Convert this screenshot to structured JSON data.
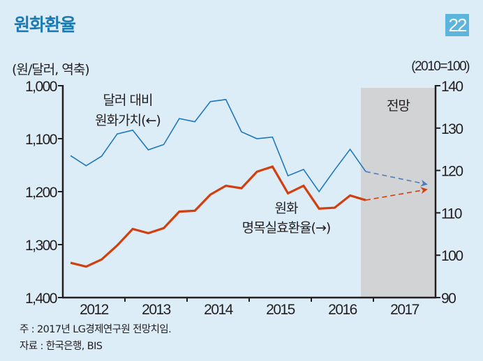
{
  "header": {
    "title": "원화환율",
    "page_badge": "22"
  },
  "colors": {
    "background": "#dcedf8",
    "title": "#1a7ab5",
    "badge": "#5cb5dc",
    "series_blue": "#1f78bd",
    "series_red": "#d23f0f",
    "forecast_shade": "#d2d3d5",
    "axis": "#231f20"
  },
  "chart_data": {
    "type": "line",
    "title": "원화환율",
    "left_axis": {
      "label": "(원/달러, 역축)",
      "inverted": true,
      "ylim": [
        1000,
        1400
      ],
      "ticks": [
        "1,000",
        "1,100",
        "1,200",
        "1,300",
        "1,400"
      ],
      "tick_values": [
        1000,
        1100,
        1200,
        1300,
        1400
      ]
    },
    "right_axis": {
      "label": "(2010=100)",
      "ylim": [
        90,
        140
      ],
      "ticks": [
        "140",
        "130",
        "120",
        "110",
        "100",
        "90"
      ],
      "tick_values": [
        140,
        130,
        120,
        110,
        100,
        90
      ]
    },
    "x_axis": {
      "categories": [
        "2012",
        "2013",
        "2014",
        "2015",
        "2016",
        "2017"
      ],
      "periods_per_year": 4,
      "x": [
        "2012Q1",
        "2012Q2",
        "2012Q3",
        "2012Q4",
        "2013Q1",
        "2013Q2",
        "2013Q3",
        "2013Q4",
        "2014Q1",
        "2014Q2",
        "2014Q3",
        "2014Q4",
        "2015Q1",
        "2015Q2",
        "2015Q3",
        "2015Q4",
        "2016Q1",
        "2016Q2",
        "2016Q3",
        "2016Q4"
      ]
    },
    "forecast_region": {
      "label": "전망",
      "start": "2016Q4",
      "end": "2017Q4"
    },
    "series": [
      {
        "name": "달러 대비 원화가치(←)",
        "label_lines": [
          "달러 대비",
          "원화가치(←)"
        ],
        "axis": "left",
        "values": [
          1132,
          1151,
          1133,
          1091,
          1084,
          1121,
          1111,
          1062,
          1068,
          1030,
          1026,
          1087,
          1100,
          1097,
          1170,
          1158,
          1200,
          1159,
          1120,
          1162
        ],
        "forecast": {
          "x": "2017Q4",
          "value": 1186
        }
      },
      {
        "name": "원화 명목실효환율(→)",
        "label_lines": [
          "원화",
          "명목실효환율(→)"
        ],
        "axis": "right",
        "values": [
          98.2,
          97.3,
          99.0,
          102.3,
          106.2,
          105.2,
          106.4,
          110.3,
          110.5,
          114.3,
          116.4,
          115.8,
          119.7,
          120.9,
          114.6,
          116.4,
          111.0,
          111.2,
          114.1,
          113.0
        ],
        "forecast": {
          "x": "2017Q4",
          "value": 115.5
        }
      }
    ]
  },
  "notes": {
    "note": "주 : 2017년 LG경제연구원 전망치임.",
    "source": "자료 : 한국은행, BIS"
  }
}
